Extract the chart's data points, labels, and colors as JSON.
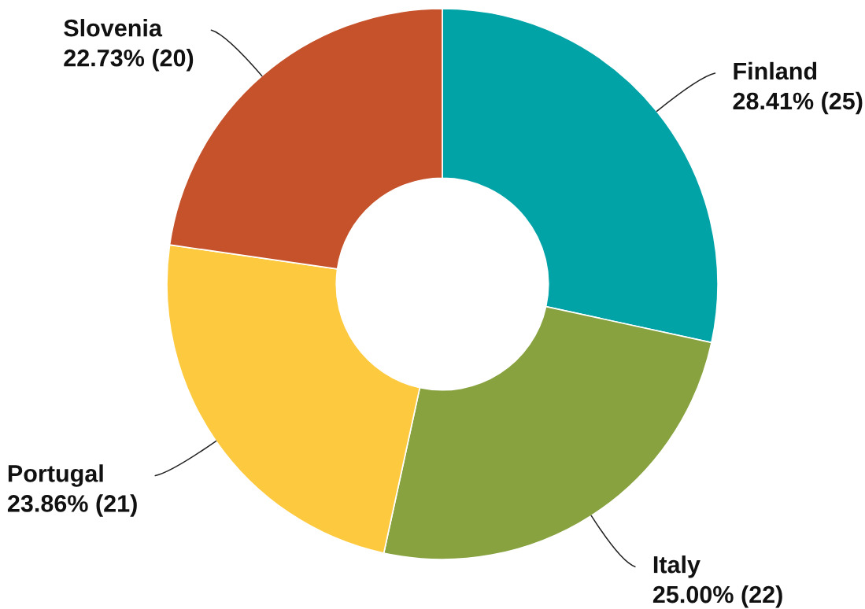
{
  "chart_data": {
    "type": "donut",
    "categories": [
      "Finland",
      "Italy",
      "Portugal",
      "Slovenia"
    ],
    "values": [
      25,
      22,
      21,
      20
    ],
    "colors": [
      "#02a3a7",
      "#87a23e",
      "#fdc93e",
      "#c5522a"
    ],
    "value_labels": [
      "28.41% (25)",
      "25.00% (22)",
      "23.86% (21)",
      "22.73% (20)"
    ]
  }
}
